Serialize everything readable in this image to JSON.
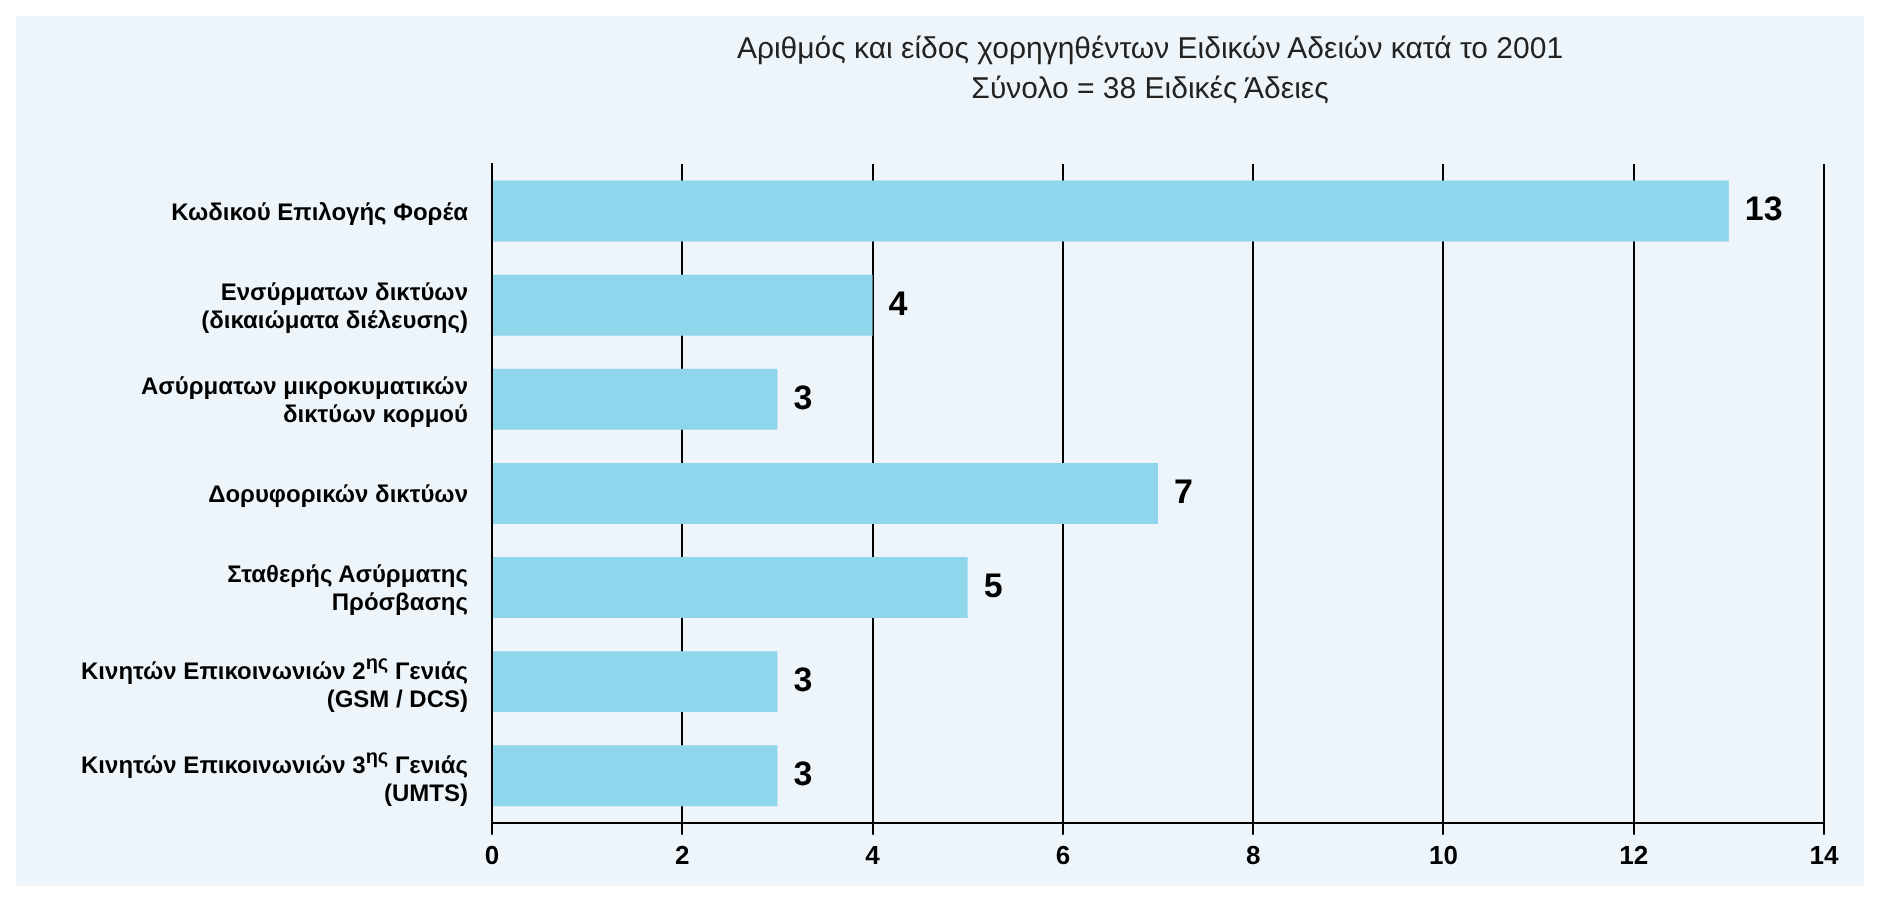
{
  "chart_data": {
    "type": "bar",
    "orientation": "horizontal",
    "title": "Αριθμός και είδος χορηγηθέντων Ειδικών Αδειών κατά το 2001",
    "subtitle": "Σύνολο = 38 Ειδικές Άδειες",
    "categories": [
      "Κωδικού Επιλογής Φορέα",
      "Ενσύρματων δικτύων\n(δικαιώματα διέλευσης)",
      "Ασύρματων μικροκυματικών\nδικτύων κορμού",
      "Δορυφορικών δικτύων",
      "Σταθερής Ασύρματης\nΠρόσβασης",
      "Κινητών Επικοινωνιών 2$^{ης}$ Γενιάς\n(GSM / DCS)",
      "Κινητών Επικοινωνιών 3$^{ης}$ Γενιάς\n(UMTS)"
    ],
    "values": [
      13,
      4,
      3,
      7,
      5,
      3,
      3
    ],
    "color": "#8fd6ec",
    "xlim": [
      0,
      14
    ],
    "xticks": [
      0,
      2,
      4,
      6,
      8,
      10,
      12,
      14
    ],
    "grid": "x",
    "legend": false,
    "data_labels": true
  }
}
